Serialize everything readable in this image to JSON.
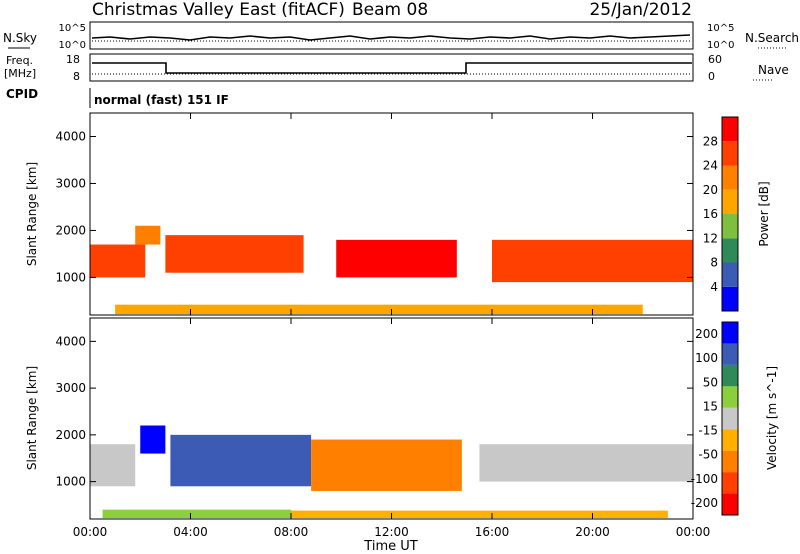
{
  "header": {
    "title": "Christmas Valley East (fitACF)",
    "beam": "Beam 08",
    "date": "25/Jan/2012"
  },
  "top_panels": {
    "nsky_label": "N.Sky",
    "nsky_ticks": [
      "10^5",
      "10^0"
    ],
    "nsearch_label": "N.Search",
    "nsearch_ticks": [
      "10^5",
      "10^0"
    ],
    "freq_label_1": "Freq.",
    "freq_label_2": "[MHz]",
    "freq_ticks": [
      "18",
      "8"
    ],
    "nave_label": "Nave",
    "nave_ticks": [
      "60",
      "0"
    ],
    "cpid_label": "CPID",
    "cpid_text": "normal (fast) 151 IF"
  },
  "colors": {
    "power_scale": [
      "#0000ff",
      "#3b5bb5",
      "#2e8b57",
      "#7fbf3f",
      "#ffa500",
      "#ff7f00",
      "#ff4000",
      "#ff0000"
    ],
    "velocity_scale": [
      "#ff0000",
      "#ff4000",
      "#ff8000",
      "#ffb000",
      "#c8c8c8",
      "#8ccf3c",
      "#2e8b57",
      "#3c5bb4",
      "#0000ff"
    ]
  },
  "chart_data": [
    {
      "type": "heatmap",
      "panel": "power",
      "ylabel": "Slant Range [km]",
      "yticks": [
        "1000",
        "2000",
        "3000",
        "4000"
      ],
      "ylim": [
        200,
        4500
      ],
      "xticks": [
        "00:00",
        "04:00",
        "08:00",
        "12:00",
        "16:00",
        "20:00",
        "00:00"
      ],
      "xlim": [
        0,
        24
      ],
      "colorbar_label": "Power [dB]",
      "colorbar_ticks": [
        "4",
        "8",
        "12",
        "16",
        "20",
        "24",
        "28"
      ],
      "bands": [
        {
          "t0": 0.0,
          "t1": 2.2,
          "r0": 1000,
          "r1": 1700,
          "value": 26
        },
        {
          "t0": 1.8,
          "t1": 2.8,
          "r0": 1700,
          "r1": 2100,
          "value": 20
        },
        {
          "t0": 3.0,
          "t1": 8.5,
          "r0": 1100,
          "r1": 1900,
          "value": 24
        },
        {
          "t0": 9.8,
          "t1": 14.6,
          "r0": 1000,
          "r1": 1800,
          "value": 28
        },
        {
          "t0": 16.0,
          "t1": 24.0,
          "r0": 900,
          "r1": 1800,
          "value": 26
        },
        {
          "t0": 1.0,
          "t1": 22.0,
          "r0": 220,
          "r1": 420,
          "value": 16
        }
      ]
    },
    {
      "type": "heatmap",
      "panel": "velocity",
      "ylabel": "Slant Range [km]",
      "yticks": [
        "1000",
        "2000",
        "3000",
        "4000"
      ],
      "ylim": [
        200,
        4500
      ],
      "xticks": [
        "00:00",
        "04:00",
        "08:00",
        "12:00",
        "16:00",
        "20:00",
        "00:00"
      ],
      "xlim": [
        0,
        24
      ],
      "xlabel": "Time UT",
      "colorbar_label": "Velocity [m s^-1]",
      "colorbar_ticks": [
        "200",
        "100",
        "50",
        "15",
        "-15",
        "-50",
        "-100",
        "-200"
      ],
      "bands": [
        {
          "t0": 0.0,
          "t1": 1.8,
          "r0": 900,
          "r1": 1800,
          "value": 0
        },
        {
          "t0": 2.0,
          "t1": 3.0,
          "r0": 1600,
          "r1": 2200,
          "value": 200
        },
        {
          "t0": 3.2,
          "t1": 8.8,
          "r0": 900,
          "r1": 2000,
          "value": 180
        },
        {
          "t0": 8.8,
          "t1": 14.8,
          "r0": 800,
          "r1": 1900,
          "value": -120
        },
        {
          "t0": 15.5,
          "t1": 24.0,
          "r0": 1000,
          "r1": 1800,
          "value": 0
        },
        {
          "t0": 0.5,
          "t1": 8.0,
          "r0": 220,
          "r1": 400,
          "value": 30
        },
        {
          "t0": 8.0,
          "t1": 23.0,
          "r0": 220,
          "r1": 380,
          "value": -60
        }
      ]
    }
  ]
}
